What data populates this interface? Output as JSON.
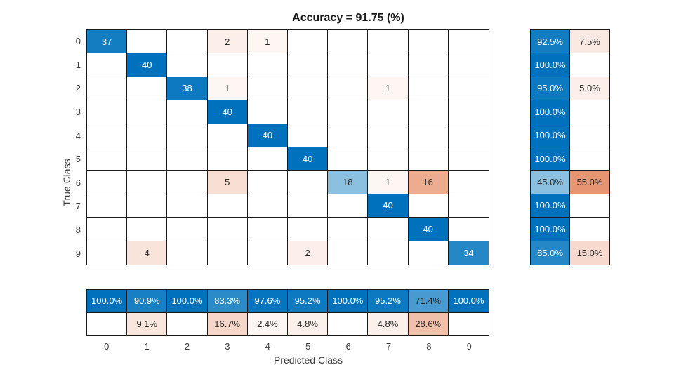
{
  "chart_data": {
    "type": "heatmap",
    "title": "Accuracy = 91.75 (%)",
    "xlabel": "Predicted Class",
    "ylabel": "True Class",
    "classes": [
      "0",
      "1",
      "2",
      "3",
      "4",
      "5",
      "6",
      "7",
      "8",
      "9"
    ],
    "matrix": [
      [
        37,
        0,
        0,
        2,
        1,
        0,
        0,
        0,
        0,
        0
      ],
      [
        0,
        40,
        0,
        0,
        0,
        0,
        0,
        0,
        0,
        0
      ],
      [
        0,
        0,
        38,
        1,
        0,
        0,
        0,
        1,
        0,
        0
      ],
      [
        0,
        0,
        0,
        40,
        0,
        0,
        0,
        0,
        0,
        0
      ],
      [
        0,
        0,
        0,
        0,
        40,
        0,
        0,
        0,
        0,
        0
      ],
      [
        0,
        0,
        0,
        0,
        0,
        40,
        0,
        0,
        0,
        0
      ],
      [
        0,
        0,
        0,
        5,
        0,
        0,
        18,
        1,
        16,
        0
      ],
      [
        0,
        0,
        0,
        0,
        0,
        0,
        0,
        40,
        0,
        0
      ],
      [
        0,
        0,
        0,
        0,
        0,
        0,
        0,
        0,
        40,
        0
      ],
      [
        0,
        4,
        0,
        0,
        0,
        2,
        0,
        0,
        0,
        34
      ]
    ],
    "row_summary": [
      [
        "92.5%",
        "7.5%"
      ],
      [
        "100.0%",
        ""
      ],
      [
        "95.0%",
        "5.0%"
      ],
      [
        "100.0%",
        ""
      ],
      [
        "100.0%",
        ""
      ],
      [
        "100.0%",
        ""
      ],
      [
        "45.0%",
        "55.0%"
      ],
      [
        "100.0%",
        ""
      ],
      [
        "100.0%",
        ""
      ],
      [
        "85.0%",
        "15.0%"
      ]
    ],
    "col_summary": [
      [
        "100.0%",
        ""
      ],
      [
        "90.9%",
        "9.1%"
      ],
      [
        "100.0%",
        ""
      ],
      [
        "83.3%",
        "16.7%"
      ],
      [
        "97.6%",
        "2.4%"
      ],
      [
        "95.2%",
        "4.8%"
      ],
      [
        "100.0%",
        ""
      ],
      [
        "95.2%",
        "4.8%"
      ],
      [
        "71.4%",
        "28.6%"
      ],
      [
        "100.0%",
        ""
      ]
    ],
    "legend_position": "none",
    "grid": true,
    "colors": {
      "diagonal": "#0072BD",
      "off_diagonal": "#D95319",
      "grid_line": "#1a1a1a",
      "text_dark": "#262626",
      "text_light": "#ffffff",
      "background": "#ffffff"
    }
  }
}
